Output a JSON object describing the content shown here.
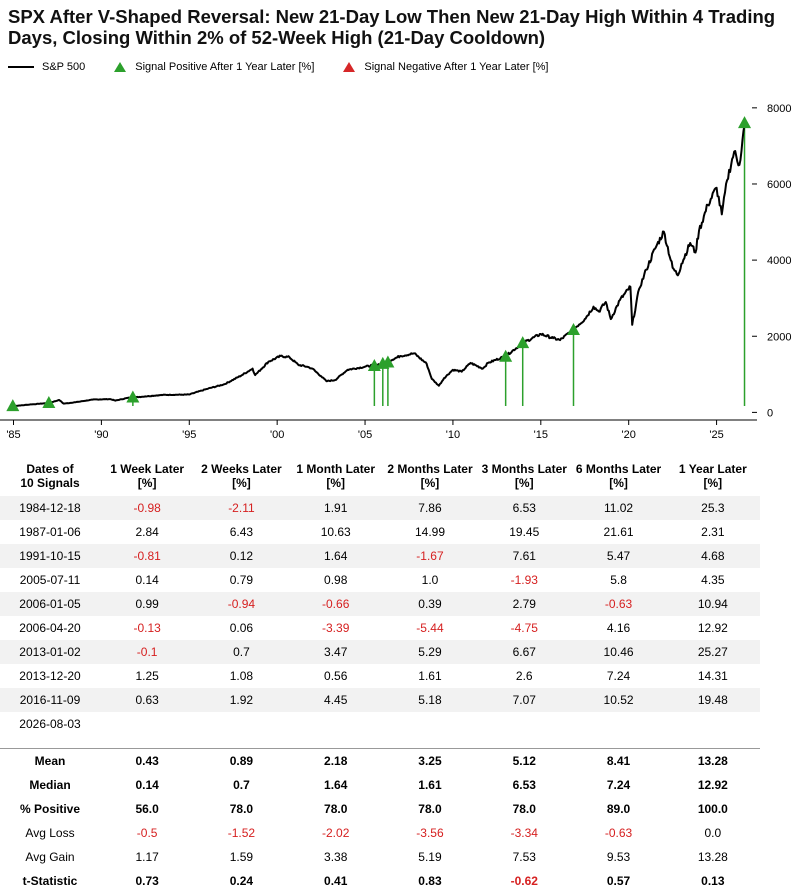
{
  "title": "SPX After V-Shaped Reversal: New 21-Day Low Then New 21-Day High Within 4 Trading Days, Closing Within 2% of 52-Week High (21-Day Cooldown)",
  "legend": {
    "line_label": "S&P 500",
    "positive_label": "Signal Positive After 1 Year Later  [%]",
    "negative_label": "Signal Negative After 1 Year Later  [%]"
  },
  "colors": {
    "line": "#000000",
    "positive": "#2ca02c",
    "negative": "#d62728",
    "negative_text": "#d62020"
  },
  "chart_data": {
    "type": "line",
    "series": [
      {
        "name": "S&P 500",
        "x": [
          1985.0,
          1986.0,
          1987.0,
          1987.6,
          1987.85,
          1988.5,
          1989.5,
          1990.5,
          1990.8,
          1991.5,
          1992.5,
          1993.5,
          1994.5,
          1995.0,
          1996.0,
          1997.0,
          1998.0,
          1998.6,
          1998.75,
          1999.5,
          2000.2,
          2000.7,
          2001.2,
          2001.7,
          2002.0,
          2002.5,
          2002.8,
          2003.3,
          2004.0,
          2005.0,
          2006.0,
          2007.0,
          2007.8,
          2008.5,
          2008.8,
          2009.2,
          2009.5,
          2010.0,
          2010.5,
          2011.0,
          2011.7,
          2012.0,
          2013.0,
          2014.0,
          2015.0,
          2015.7,
          2016.1,
          2016.9,
          2017.5,
          2018.0,
          2018.3,
          2018.7,
          2018.98,
          2019.5,
          2020.1,
          2020.2,
          2020.6,
          2021.0,
          2021.5,
          2022.0,
          2022.5,
          2022.8,
          2023.0,
          2023.5,
          2023.8,
          2024.0,
          2024.5,
          2025.0,
          2025.3,
          2025.6,
          2026.0,
          2026.3,
          2026.59
        ],
        "values": [
          165,
          210,
          245,
          325,
          230,
          265,
          335,
          350,
          310,
          380,
          420,
          460,
          465,
          470,
          615,
          740,
          980,
          1150,
          980,
          1330,
          1480,
          1450,
          1250,
          1200,
          1150,
          950,
          820,
          850,
          1120,
          1200,
          1280,
          1480,
          1550,
          1280,
          880,
          700,
          900,
          1120,
          1070,
          1300,
          1150,
          1300,
          1480,
          1830,
          2060,
          1950,
          1900,
          2200,
          2450,
          2780,
          2650,
          2900,
          2450,
          2950,
          3300,
          2300,
          3250,
          3750,
          4300,
          4750,
          3800,
          3600,
          3900,
          4450,
          4200,
          4770,
          5450,
          5900,
          5200,
          6100,
          6850,
          6500,
          7550
        ]
      }
    ],
    "signals": [
      {
        "date": "1984-12-18",
        "x": 1984.96,
        "price": 165,
        "one_year_return": 25.3,
        "sign": "positive"
      },
      {
        "date": "1987-01-06",
        "x": 1987.01,
        "price": 246,
        "one_year_return": 2.31,
        "sign": "positive"
      },
      {
        "date": "1991-10-15",
        "x": 1991.79,
        "price": 392,
        "one_year_return": 4.68,
        "sign": "positive"
      },
      {
        "date": "2005-07-11",
        "x": 2005.53,
        "price": 1220,
        "one_year_return": 4.35,
        "sign": "positive"
      },
      {
        "date": "2006-01-05",
        "x": 2006.01,
        "price": 1275,
        "one_year_return": 10.94,
        "sign": "positive"
      },
      {
        "date": "2006-04-20",
        "x": 2006.3,
        "price": 1310,
        "one_year_return": 12.92,
        "sign": "positive"
      },
      {
        "date": "2013-01-02",
        "x": 2013.0,
        "price": 1462,
        "one_year_return": 25.27,
        "sign": "positive"
      },
      {
        "date": "2013-12-20",
        "x": 2013.97,
        "price": 1818,
        "one_year_return": 14.31,
        "sign": "positive"
      },
      {
        "date": "2016-11-09",
        "x": 2016.86,
        "price": 2163,
        "one_year_return": 19.48,
        "sign": "positive"
      },
      {
        "date": "2026-08-03",
        "x": 2026.59,
        "price": 7600,
        "one_year_return": null,
        "sign": "positive"
      }
    ],
    "x_ticks": [
      1985,
      1990,
      1995,
      2000,
      2005,
      2010,
      2015,
      2020,
      2025
    ],
    "x_tick_labels": [
      "'85",
      "'90",
      "'95",
      "'00",
      "'05",
      "'10",
      "'15",
      "'20",
      "'25"
    ],
    "y_ticks": [
      0,
      2000,
      4000,
      6000,
      8000
    ],
    "y_tick_labels": [
      "0",
      "2000",
      "4000",
      "6000",
      "8000"
    ],
    "xlim": [
      1984.8,
      2027.3
    ],
    "ylim": [
      -200,
      8600
    ],
    "grid": false,
    "legend_position": "top-left"
  },
  "table": {
    "headers": [
      {
        "line1": "Dates of",
        "line2": "10 Signals"
      },
      {
        "line1": "1 Week Later",
        "line2": "[%]"
      },
      {
        "line1": "2 Weeks Later",
        "line2": "[%]"
      },
      {
        "line1": "1 Month Later",
        "line2": "[%]"
      },
      {
        "line1": "2 Months Later",
        "line2": "[%]"
      },
      {
        "line1": "3 Months Later",
        "line2": "[%]"
      },
      {
        "line1": "6 Months Later",
        "line2": "[%]"
      },
      {
        "line1": "1 Year Later",
        "line2": "[%]"
      }
    ],
    "rows": [
      [
        "1984-12-18",
        "-0.98",
        "-2.11",
        "1.91",
        "7.86",
        "6.53",
        "11.02",
        "25.3"
      ],
      [
        "1987-01-06",
        "2.84",
        "6.43",
        "10.63",
        "14.99",
        "19.45",
        "21.61",
        "2.31"
      ],
      [
        "1991-10-15",
        "-0.81",
        "0.12",
        "1.64",
        "-1.67",
        "7.61",
        "5.47",
        "4.68"
      ],
      [
        "2005-07-11",
        "0.14",
        "0.79",
        "0.98",
        "1.0",
        "-1.93",
        "5.8",
        "4.35"
      ],
      [
        "2006-01-05",
        "0.99",
        "-0.94",
        "-0.66",
        "0.39",
        "2.79",
        "-0.63",
        "10.94"
      ],
      [
        "2006-04-20",
        "-0.13",
        "0.06",
        "-3.39",
        "-5.44",
        "-4.75",
        "4.16",
        "12.92"
      ],
      [
        "2013-01-02",
        "-0.1",
        "0.7",
        "3.47",
        "5.29",
        "6.67",
        "10.46",
        "25.27"
      ],
      [
        "2013-12-20",
        "1.25",
        "1.08",
        "0.56",
        "1.61",
        "2.6",
        "7.24",
        "14.31"
      ],
      [
        "2016-11-09",
        "0.63",
        "1.92",
        "4.45",
        "5.18",
        "7.07",
        "10.52",
        "19.48"
      ],
      [
        "2026-08-03",
        "",
        "",
        "",
        "",
        "",
        "",
        ""
      ]
    ],
    "summary": [
      {
        "label": "Mean",
        "bold": true,
        "values": [
          "0.43",
          "0.89",
          "2.18",
          "3.25",
          "5.12",
          "8.41",
          "13.28"
        ]
      },
      {
        "label": "Median",
        "bold": true,
        "values": [
          "0.14",
          "0.7",
          "1.64",
          "1.61",
          "6.53",
          "7.24",
          "12.92"
        ]
      },
      {
        "label": "% Positive",
        "bold": true,
        "values": [
          "56.0",
          "78.0",
          "78.0",
          "78.0",
          "78.0",
          "89.0",
          "100.0"
        ]
      },
      {
        "label": "Avg Loss",
        "bold": false,
        "values": [
          "-0.5",
          "-1.52",
          "-2.02",
          "-3.56",
          "-3.34",
          "-0.63",
          "0.0"
        ]
      },
      {
        "label": "Avg Gain",
        "bold": false,
        "values": [
          "1.17",
          "1.59",
          "3.38",
          "5.19",
          "7.53",
          "9.53",
          "13.28"
        ]
      },
      {
        "label": "t-Statistic",
        "bold": true,
        "values": [
          "0.73",
          "0.24",
          "0.41",
          "0.83",
          "-0.62",
          "0.57",
          "0.13"
        ]
      }
    ]
  }
}
